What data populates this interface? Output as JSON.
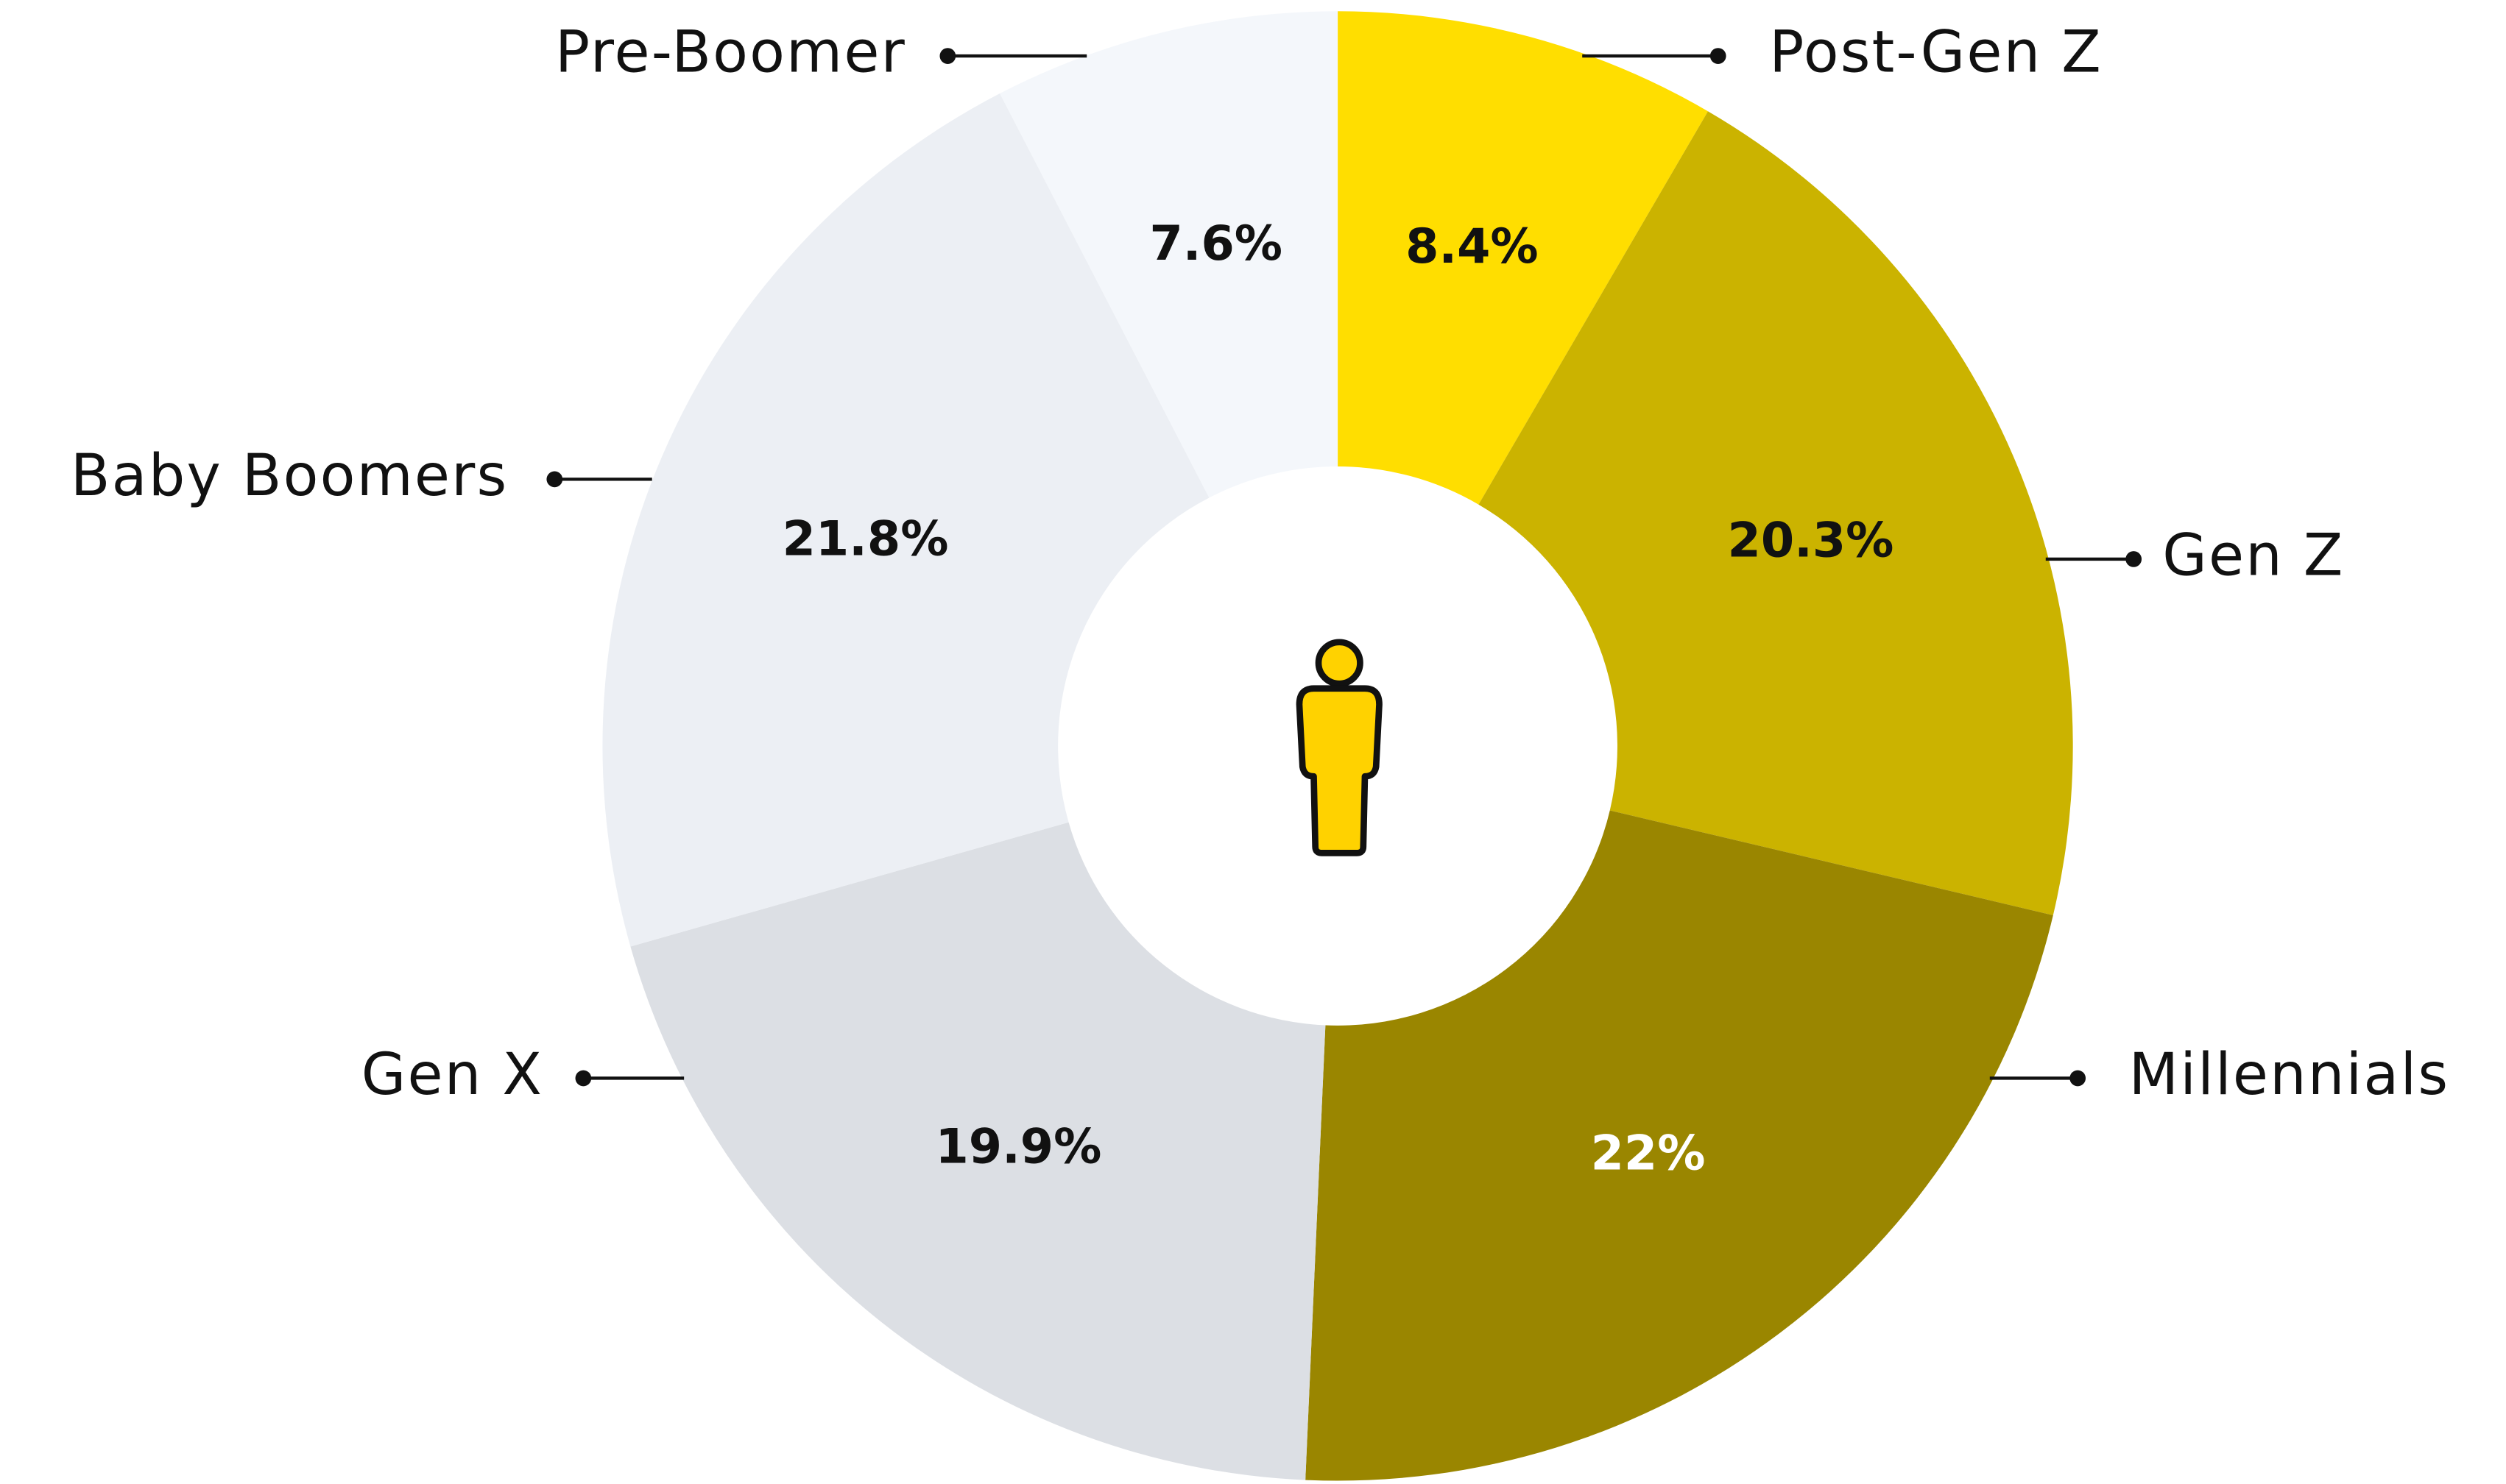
{
  "chart_data": {
    "type": "pie",
    "categories": [
      "Post-Gen Z",
      "Gen Z",
      "Millennials",
      "Gen X",
      "Baby Boomers",
      "Pre-Boomer"
    ],
    "values": [
      8.4,
      20.3,
      22,
      19.9,
      21.8,
      7.6
    ],
    "value_labels": [
      "8.4%",
      "20.3%",
      "22%",
      "19.9%",
      "21.8%",
      "7.6%"
    ],
    "colors": [
      "#ffde00",
      "#cbb300",
      "#9a8600",
      "#dcdfe4",
      "#eceff4",
      "#f4f7fb"
    ],
    "value_label_colors": [
      "#111111",
      "#111111",
      "#ffffff",
      "#111111",
      "#111111",
      "#111111"
    ]
  }
}
